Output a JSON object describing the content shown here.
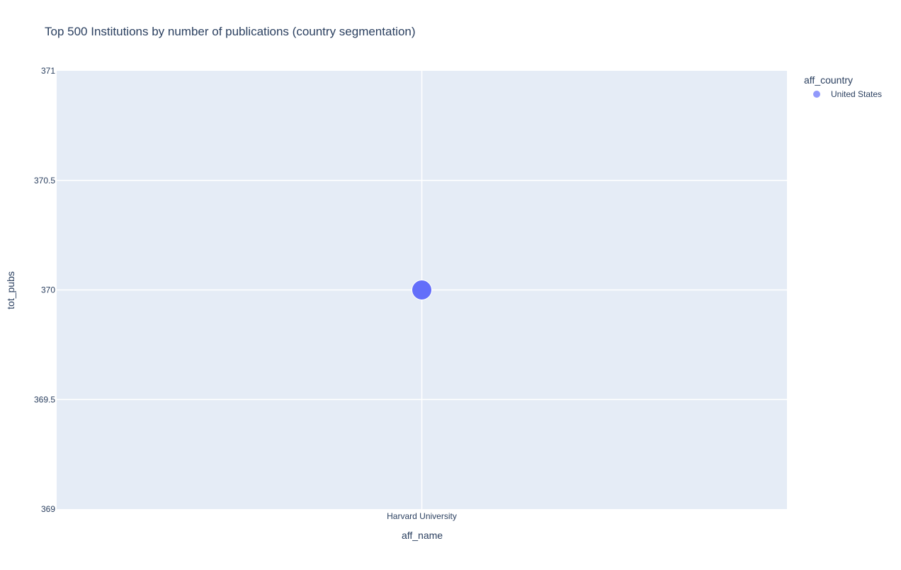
{
  "chart_data": {
    "type": "scatter",
    "title": "Top 500 Institutions by number of publications (country segmentation)",
    "xlabel": "aff_name",
    "ylabel": "tot_pubs",
    "categories": [
      "Harvard University"
    ],
    "ylim": [
      369,
      371
    ],
    "yticks": [
      "369",
      "369.5",
      "370",
      "370.5",
      "371"
    ],
    "ytick_values": [
      369,
      369.5,
      370,
      370.5,
      371
    ],
    "grid": true,
    "legend": {
      "title": "aff_country",
      "placement": "top-right",
      "entries": [
        "United States"
      ]
    },
    "series": [
      {
        "name": "United States",
        "color": "#636efa",
        "points": [
          {
            "x": "Harvard University",
            "y": 370
          }
        ]
      }
    ],
    "colors": {
      "plot_background": "#e5ecf6",
      "grid": "#ffffff",
      "text": "#2a3f5f"
    }
  }
}
